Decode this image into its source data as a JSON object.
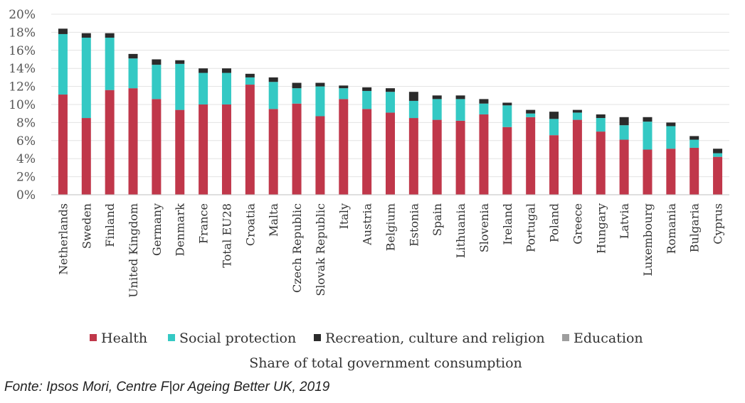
{
  "source_note": "Fonte: Ipsos Mori, Centre F|or Ageing Better UK, 2019",
  "chart_data": {
    "type": "bar",
    "stacked": true,
    "xlabel": "Share of total government consumption",
    "ylabel": "",
    "ylim": [
      0,
      20
    ],
    "yticks": [
      "0%",
      "2%",
      "4%",
      "6%",
      "8%",
      "10%",
      "12%",
      "14%",
      "16%",
      "18%",
      "20%"
    ],
    "grid": true,
    "legend_position": "bottom",
    "categories": [
      "Netherlands",
      "Sweden",
      "Finland",
      "United Kingdom",
      "Germany",
      "Denmark",
      "France",
      "Total EU28",
      "Croatia",
      "Malta",
      "Czech Republic",
      "Slovak Republic",
      "Italy",
      "Austria",
      "Belgium",
      "Estonia",
      "Spain",
      "Lithuania",
      "Slovenia",
      "Ireland",
      "Portugal",
      "Poland",
      "Greece",
      "Hungary",
      "Latvia",
      "Luxembourg",
      "Romania",
      "Bulgaria",
      "Cyprus"
    ],
    "series": [
      {
        "name": "Health",
        "color": "#c0374a",
        "values": [
          11.1,
          8.5,
          11.6,
          11.8,
          10.6,
          9.4,
          10.0,
          10.0,
          12.2,
          9.5,
          10.1,
          8.7,
          10.6,
          9.5,
          9.1,
          8.5,
          8.3,
          8.2,
          8.9,
          7.5,
          8.6,
          6.6,
          8.3,
          7.0,
          6.1,
          5.0,
          5.1,
          5.2,
          4.2
        ]
      },
      {
        "name": "Social protection",
        "color": "#34c9c4",
        "values": [
          6.7,
          8.9,
          5.8,
          3.3,
          3.8,
          5.1,
          3.5,
          3.5,
          0.8,
          3.0,
          1.7,
          3.3,
          1.2,
          2.0,
          2.3,
          1.9,
          2.3,
          2.4,
          1.2,
          2.4,
          0.4,
          1.8,
          0.8,
          1.5,
          1.6,
          3.1,
          2.5,
          0.9,
          0.4
        ]
      },
      {
        "name": "Recreation, culture and religion",
        "color": "#2b2b2b",
        "values": [
          0.6,
          0.5,
          0.5,
          0.5,
          0.6,
          0.4,
          0.5,
          0.5,
          0.4,
          0.5,
          0.6,
          0.4,
          0.3,
          0.4,
          0.4,
          1.0,
          0.4,
          0.4,
          0.5,
          0.3,
          0.4,
          0.8,
          0.3,
          0.4,
          0.9,
          0.5,
          0.4,
          0.4,
          0.5
        ]
      },
      {
        "name": "Education",
        "color": "#9e9e9e",
        "values": [
          0,
          0,
          0,
          0,
          0,
          0,
          0,
          0,
          0,
          0,
          0,
          0,
          0,
          0,
          0,
          0,
          0,
          0,
          0,
          0,
          0,
          0,
          0,
          0,
          0,
          0,
          0,
          0,
          0
        ]
      }
    ]
  }
}
